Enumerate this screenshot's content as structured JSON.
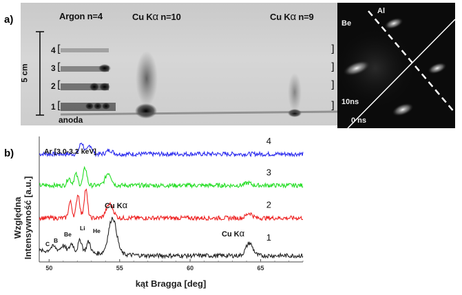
{
  "panel_a": {
    "label": "a)",
    "argon_label": "Argon n=4",
    "cuk10_label": "Cu K",
    "cuk10_alpha": "α",
    "cuk10_n": " n=10",
    "cuk9_label": "Cu K",
    "cuk9_alpha": "α",
    "cuk9_n": " n=9",
    "scale_label": "5 cm",
    "orders": [
      "4",
      "3",
      "2",
      "1"
    ],
    "anode_label": "anoda",
    "pinhole": {
      "be_label": "Be",
      "al_label": "Al",
      "t10_label": "10ns",
      "t0_label": "0 ns"
    }
  },
  "panel_b": {
    "label": "b)"
  },
  "chart_data": {
    "type": "line",
    "xlabel": "kąt Bragga [deg]",
    "ylabel_line1": "Względna",
    "ylabel_line2": "Intensywność [a.u.]",
    "xlim": [
      49.3,
      68
    ],
    "xticks": [
      50,
      55,
      60,
      65
    ],
    "ylim": [
      0,
      10
    ],
    "y_ticks_shown": false,
    "series": [
      {
        "name": "4",
        "color": "#2a2aee",
        "offset": 7.7,
        "peaks": [
          [
            52.3,
            0.9,
            0.22
          ],
          [
            52.9,
            0.7,
            0.22
          ],
          [
            54.3,
            0.3,
            0.3
          ]
        ]
      },
      {
        "name": "3",
        "color": "#22dd22",
        "offset": 5.2,
        "peaks": [
          [
            51.4,
            0.6,
            0.18
          ],
          [
            51.9,
            0.9,
            0.18
          ],
          [
            52.55,
            1.4,
            0.18
          ],
          [
            54.2,
            1.0,
            0.3
          ],
          [
            64.1,
            0.2,
            0.3
          ]
        ]
      },
      {
        "name": "2",
        "color": "#ee2020",
        "offset": 2.6,
        "peaks": [
          [
            51.5,
            1.3,
            0.17
          ],
          [
            52.05,
            1.9,
            0.17
          ],
          [
            52.6,
            2.3,
            0.17
          ],
          [
            54.3,
            1.1,
            0.35
          ],
          [
            64.2,
            0.4,
            0.3
          ]
        ]
      },
      {
        "name": "1",
        "color": "#222222",
        "offset": 0.0,
        "peaks": [
          [
            50.3,
            0.4,
            0.3
          ],
          [
            51.0,
            0.5,
            0.25
          ],
          [
            51.6,
            0.7,
            0.2
          ],
          [
            52.2,
            1.0,
            0.2
          ],
          [
            52.8,
            0.9,
            0.2
          ],
          [
            54.5,
            2.9,
            0.4
          ],
          [
            64.2,
            1.0,
            0.35
          ]
        ]
      }
    ],
    "annotations": {
      "ar_band": "Ar [3.0-3.2 keV]",
      "cuka_mid": "Cu K",
      "cuka_mid_sub": "α",
      "cuka_right": "Cu K",
      "cuka_right_sub": "α",
      "elements": [
        "C",
        "B",
        "Be",
        "Li",
        "He"
      ]
    }
  }
}
